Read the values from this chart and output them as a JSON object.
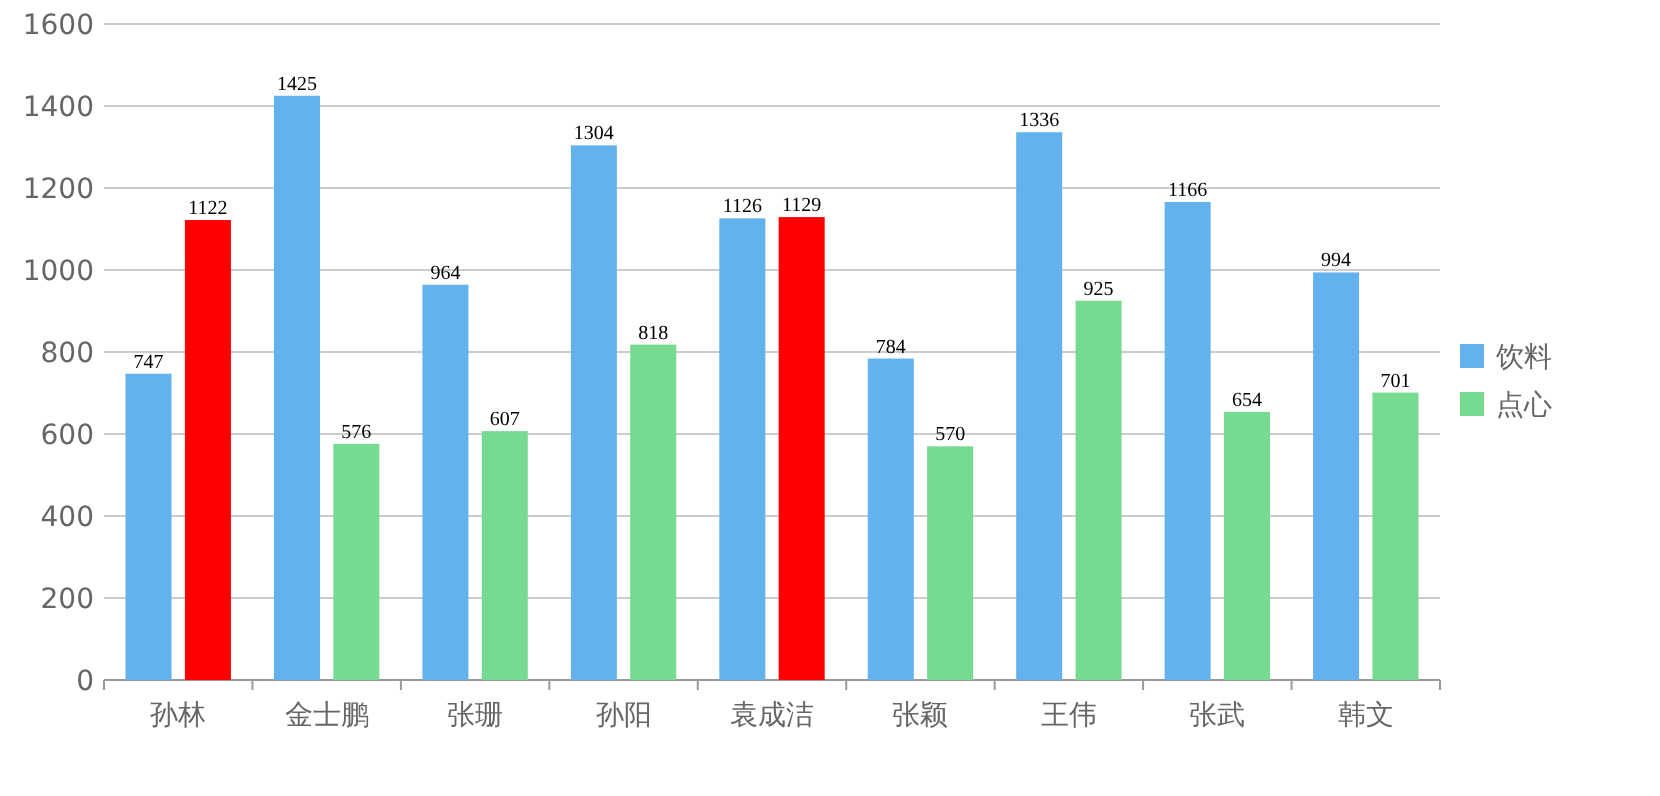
{
  "chart_data": {
    "type": "bar",
    "categories": [
      "孙林",
      "金士鹏",
      "张珊",
      "孙阳",
      "袁成洁",
      "张颖",
      "王伟",
      "张武",
      "韩文"
    ],
    "series": [
      {
        "name": "饮料",
        "color": "#63b2ee",
        "values": [
          747,
          1425,
          964,
          1304,
          1126,
          784,
          1336,
          1166,
          994
        ]
      },
      {
        "name": "点心",
        "color": "#76da91",
        "colors": [
          "#ff0000",
          "#76da91",
          "#76da91",
          "#76da91",
          "#ff0000",
          "#76da91",
          "#76da91",
          "#76da91",
          "#76da91"
        ],
        "values": [
          1122,
          576,
          607,
          818,
          1129,
          570,
          925,
          654,
          701
        ]
      }
    ],
    "ylim": [
      0,
      1600
    ],
    "yticks": [
      0,
      200,
      400,
      600,
      800,
      1000,
      1200,
      1400,
      1600
    ],
    "grid": "y",
    "legend": "right",
    "data_labels": true
  }
}
